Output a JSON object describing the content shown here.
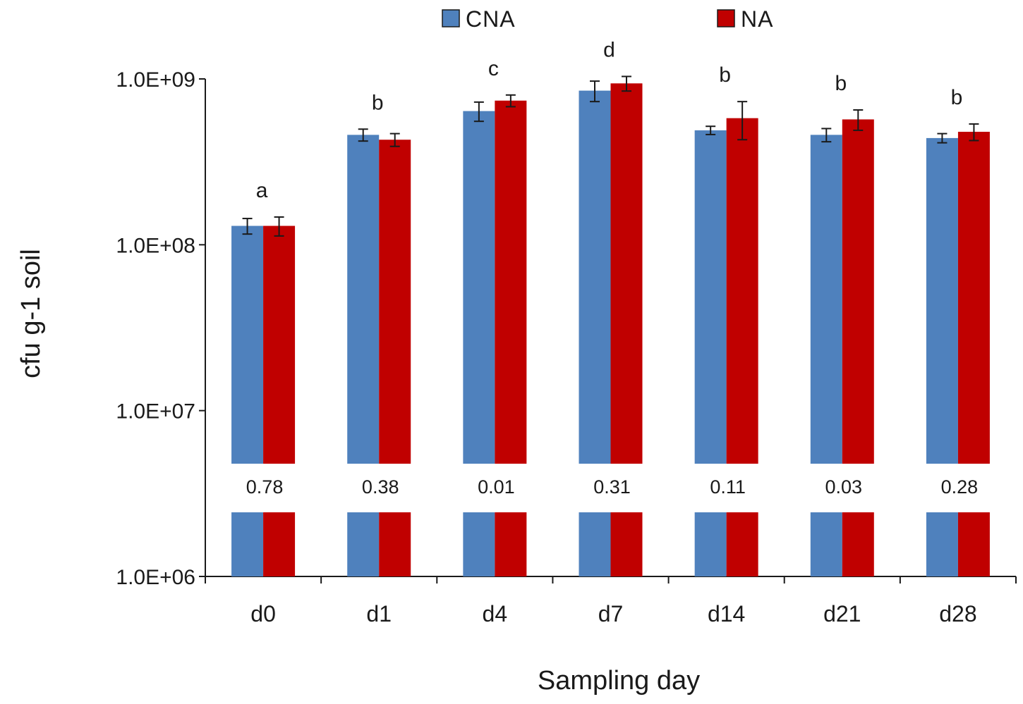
{
  "chart_data": {
    "type": "bar",
    "scale": "log",
    "title": "",
    "xlabel": "Sampling day",
    "ylabel": "cfu g-1 soil",
    "ylim": [
      1000000,
      1000000000
    ],
    "y_ticks": [
      {
        "value": 1000000,
        "label": "1.0E+06"
      },
      {
        "value": 10000000,
        "label": "1.0E+07"
      },
      {
        "value": 100000000,
        "label": "1.0E+08"
      },
      {
        "value": 1000000000,
        "label": "1.0E+09"
      }
    ],
    "categories": [
      "d0",
      "d1",
      "d4",
      "d7",
      "d14",
      "d21",
      "d28"
    ],
    "series": [
      {
        "name": "CNA",
        "color": "#4f81bd",
        "values": [
          130000000,
          460000000,
          640000000,
          850000000,
          490000000,
          460000000,
          440000000
        ],
        "errors": [
          14000000,
          38000000,
          85000000,
          120000000,
          28000000,
          42000000,
          28000000
        ]
      },
      {
        "name": "NA",
        "color": "#c00000",
        "values": [
          130000000,
          430000000,
          740000000,
          940000000,
          580000000,
          570000000,
          480000000
        ],
        "errors": [
          17000000,
          38000000,
          60000000,
          95000000,
          150000000,
          80000000,
          55000000
        ]
      }
    ],
    "group_letters": [
      "a",
      "b",
      "c",
      "d",
      "b",
      "b",
      "b"
    ],
    "p_values": [
      "0.78",
      "0.38",
      "0.01",
      "0.31",
      "0.11",
      "0.03",
      "0.28"
    ],
    "legend": [
      "CNA",
      "NA"
    ],
    "legend_position": "top-center",
    "grid": false
  }
}
